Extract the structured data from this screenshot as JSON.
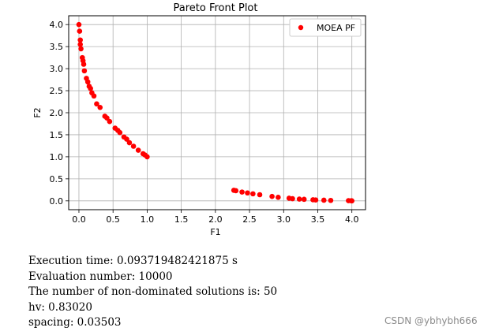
{
  "chart_data": {
    "type": "scatter",
    "title": "Pareto Front Plot",
    "xlabel": "F1",
    "ylabel": "F2",
    "xlim": [
      -0.15,
      4.2
    ],
    "ylim": [
      -0.2,
      4.2
    ],
    "xticks": [
      0.0,
      0.5,
      1.0,
      1.5,
      2.0,
      2.5,
      3.0,
      3.5,
      4.0
    ],
    "xtick_labels": [
      "0.0",
      "0.5",
      "1.0",
      "1.5",
      "2.0",
      "2.5",
      "3.0",
      "3.5",
      "4.0"
    ],
    "yticks": [
      0.0,
      0.5,
      1.0,
      1.5,
      2.0,
      2.5,
      3.0,
      3.5,
      4.0
    ],
    "ytick_labels": [
      "0.0",
      "0.5",
      "1.0",
      "1.5",
      "2.0",
      "2.5",
      "3.0",
      "3.5",
      "4.0"
    ],
    "grid": true,
    "legend_position": "upper right",
    "series": [
      {
        "name": "MOEA PF",
        "color": "#ff0000",
        "marker": "circle",
        "points": [
          [
            0.0,
            4.0
          ],
          [
            0.01,
            3.85
          ],
          [
            0.02,
            3.65
          ],
          [
            0.02,
            3.55
          ],
          [
            0.03,
            3.45
          ],
          [
            0.05,
            3.25
          ],
          [
            0.06,
            3.18
          ],
          [
            0.07,
            3.1
          ],
          [
            0.08,
            2.95
          ],
          [
            0.11,
            2.78
          ],
          [
            0.13,
            2.7
          ],
          [
            0.15,
            2.6
          ],
          [
            0.17,
            2.55
          ],
          [
            0.19,
            2.45
          ],
          [
            0.22,
            2.38
          ],
          [
            0.26,
            2.2
          ],
          [
            0.31,
            2.12
          ],
          [
            0.38,
            1.92
          ],
          [
            0.41,
            1.88
          ],
          [
            0.45,
            1.8
          ],
          [
            0.53,
            1.65
          ],
          [
            0.57,
            1.6
          ],
          [
            0.6,
            1.55
          ],
          [
            0.66,
            1.45
          ],
          [
            0.7,
            1.4
          ],
          [
            0.74,
            1.32
          ],
          [
            0.8,
            1.24
          ],
          [
            0.87,
            1.15
          ],
          [
            0.94,
            1.07
          ],
          [
            0.97,
            1.04
          ],
          [
            1.0,
            1.0
          ],
          [
            2.27,
            0.24
          ],
          [
            2.3,
            0.23
          ],
          [
            2.39,
            0.2
          ],
          [
            2.47,
            0.18
          ],
          [
            2.55,
            0.16
          ],
          [
            2.65,
            0.14
          ],
          [
            2.83,
            0.1
          ],
          [
            2.92,
            0.08
          ],
          [
            3.08,
            0.06
          ],
          [
            3.13,
            0.05
          ],
          [
            3.23,
            0.04
          ],
          [
            3.3,
            0.035
          ],
          [
            3.43,
            0.025
          ],
          [
            3.47,
            0.02
          ],
          [
            3.59,
            0.015
          ],
          [
            3.69,
            0.01
          ],
          [
            3.95,
            0.005
          ],
          [
            3.99,
            0.002
          ],
          [
            4.0,
            0.0
          ]
        ]
      }
    ]
  },
  "output_lines": [
    "Execution time: 0.093719482421875 s",
    "Evaluation number: 10000",
    "The number of non-dominated solutions is: 50",
    "hv: 0.83020",
    "spacing: 0.03503"
  ],
  "watermark": "CSDN @ybhybh666"
}
